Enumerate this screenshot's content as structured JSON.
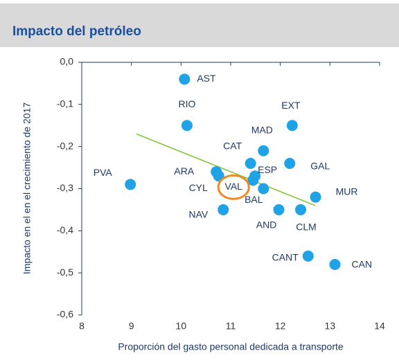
{
  "chart_data": {
    "type": "scatter",
    "title": "Impacto del petróleo",
    "x_label": "Proporción del gasto personal dedicada a transporte",
    "y_label": "Impacto en el en el crecimiento de 2017",
    "color": "#1fa2e6",
    "labels": [
      "AST",
      "RIO",
      "EXT",
      "MAD",
      "GAL",
      "CAT",
      "ARA",
      "ESP",
      "CYL",
      "PVA",
      "VAL",
      "BAL",
      "MUR",
      "NAV",
      "AND",
      "CLM",
      "CANT",
      "CAN"
    ],
    "x": [
      10.07,
      10.12,
      12.24,
      11.66,
      12.19,
      11.4,
      10.71,
      11.49,
      10.76,
      8.98,
      11.45,
      11.66,
      12.71,
      10.85,
      11.97,
      12.41,
      12.56,
      13.1
    ],
    "values": [
      -0.04,
      -0.15,
      -0.15,
      -0.21,
      -0.24,
      -0.24,
      -0.26,
      -0.27,
      -0.27,
      -0.29,
      -0.28,
      -0.3,
      -0.32,
      -0.35,
      -0.35,
      -0.35,
      -0.46,
      -0.48
    ],
    "trendline": {
      "color": "#7dc32a",
      "x": [
        9.1,
        12.7
      ],
      "values": [
        -0.17,
        -0.34
      ]
    },
    "highlight": {
      "label_index": 10,
      "color": "#f08a24"
    },
    "xlim": [
      8,
      14
    ],
    "xticks": [
      8,
      9,
      10,
      11,
      12,
      13,
      14
    ],
    "ylim": [
      -0.6,
      0
    ],
    "yticks": [
      {
        "value": 0,
        "label": "0,0"
      },
      {
        "value": -0.1,
        "label": "-0,1"
      },
      {
        "value": -0.2,
        "label": "-0,2"
      },
      {
        "value": -0.3,
        "label": "-0,3"
      },
      {
        "value": -0.4,
        "label": "-0,4"
      },
      {
        "value": -0.5,
        "label": "-0,5"
      },
      {
        "value": -0.6,
        "label": "-0,6"
      }
    ]
  }
}
